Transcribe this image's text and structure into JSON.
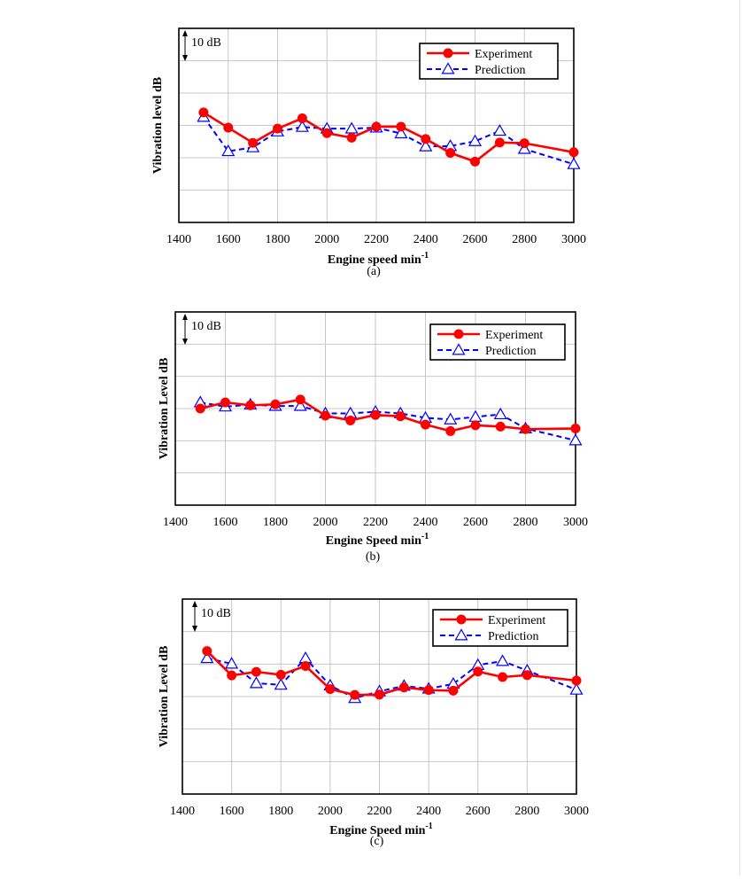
{
  "chart_data": [
    {
      "type": "line",
      "panel_label": "(a)",
      "xlabel": "Engine  speed min",
      "xlabel_superscript": "-1",
      "ylabel": "Vibration level  dB",
      "scale_label": "10 dB",
      "x_ticks": [
        "1400",
        "1600",
        "1800",
        "2000",
        "2200",
        "2400",
        "2600",
        "2800",
        "3000"
      ],
      "xlim": [
        1400,
        3000
      ],
      "ylim": [
        0,
        60
      ],
      "grid": true,
      "legend_position": "top-right",
      "x": [
        1500,
        1600,
        1700,
        1800,
        1900,
        2000,
        2100,
        2200,
        2300,
        2400,
        2500,
        2600,
        2700,
        2800,
        3000
      ],
      "series": [
        {
          "name": "Experiment",
          "color": "#ff0000",
          "style": "solid",
          "marker": "circle",
          "values": [
            34.0,
            29.3,
            24.6,
            29.0,
            32.2,
            27.6,
            26.2,
            29.6,
            29.6,
            25.8,
            21.5,
            18.8,
            24.7,
            24.5,
            21.7
          ]
        },
        {
          "name": "Prediction",
          "color": "#0000ff",
          "style": "dashed",
          "marker": "triangle",
          "values": [
            32.6,
            22.0,
            23.2,
            28.1,
            29.5,
            29.0,
            29.0,
            29.3,
            27.5,
            23.5,
            23.6,
            25.1,
            28.3,
            22.7,
            18.0
          ]
        }
      ]
    },
    {
      "type": "line",
      "panel_label": "(b)",
      "xlabel": "Engine Speed  min",
      "xlabel_superscript": "-1",
      "ylabel": "Vibration  Level  dB",
      "scale_label": "10 dB",
      "x_ticks": [
        "1400",
        "1600",
        "1800",
        "2000",
        "2200",
        "2400",
        "2600",
        "2800",
        "3000"
      ],
      "xlim": [
        1400,
        3000
      ],
      "ylim": [
        0,
        60
      ],
      "grid": true,
      "legend_position": "top-right",
      "x": [
        1500,
        1600,
        1700,
        1800,
        1900,
        2000,
        2100,
        2200,
        2300,
        2400,
        2500,
        2600,
        2700,
        2800,
        3000
      ],
      "series": [
        {
          "name": "Experiment",
          "color": "#ff0000",
          "style": "solid",
          "marker": "circle",
          "values": [
            30.0,
            31.9,
            31.0,
            31.3,
            32.8,
            27.8,
            26.3,
            28.0,
            27.6,
            25.0,
            23.0,
            24.8,
            24.4,
            23.6,
            23.8
          ]
        },
        {
          "name": "Prediction",
          "color": "#0000ff",
          "style": "dashed",
          "marker": "triangle",
          "values": [
            31.9,
            30.6,
            31.2,
            30.8,
            30.8,
            28.5,
            28.5,
            29.0,
            28.5,
            27.1,
            26.6,
            27.4,
            28.2,
            23.8,
            20.1
          ]
        }
      ]
    },
    {
      "type": "line",
      "panel_label": "(c)",
      "xlabel": "Engine Speed  min",
      "xlabel_superscript": "-1",
      "ylabel": "Vibration  Level  dB",
      "scale_label": "10 dB",
      "x_ticks": [
        "1400",
        "1600",
        "1800",
        "2000",
        "2200",
        "2400",
        "2600",
        "2800",
        "3000"
      ],
      "xlim": [
        1400,
        3000
      ],
      "ylim": [
        0,
        60
      ],
      "grid": true,
      "legend_position": "top-right",
      "x": [
        1500,
        1600,
        1700,
        1800,
        1900,
        2000,
        2100,
        2200,
        2300,
        2400,
        2500,
        2600,
        2700,
        2800,
        3000
      ],
      "series": [
        {
          "name": "Experiment",
          "color": "#ff0000",
          "style": "solid",
          "marker": "circle",
          "values": [
            44.0,
            36.5,
            37.6,
            36.7,
            39.4,
            32.3,
            30.5,
            30.6,
            32.8,
            32.0,
            31.8,
            37.7,
            36.0,
            36.6,
            34.9
          ]
        },
        {
          "name": "Prediction",
          "color": "#0000ff",
          "style": "dashed",
          "marker": "triangle",
          "values": [
            41.8,
            40.1,
            34.1,
            33.6,
            41.8,
            33.4,
            29.5,
            31.6,
            33.3,
            32.4,
            33.9,
            39.7,
            40.9,
            38.0,
            32.1
          ]
        }
      ]
    }
  ]
}
